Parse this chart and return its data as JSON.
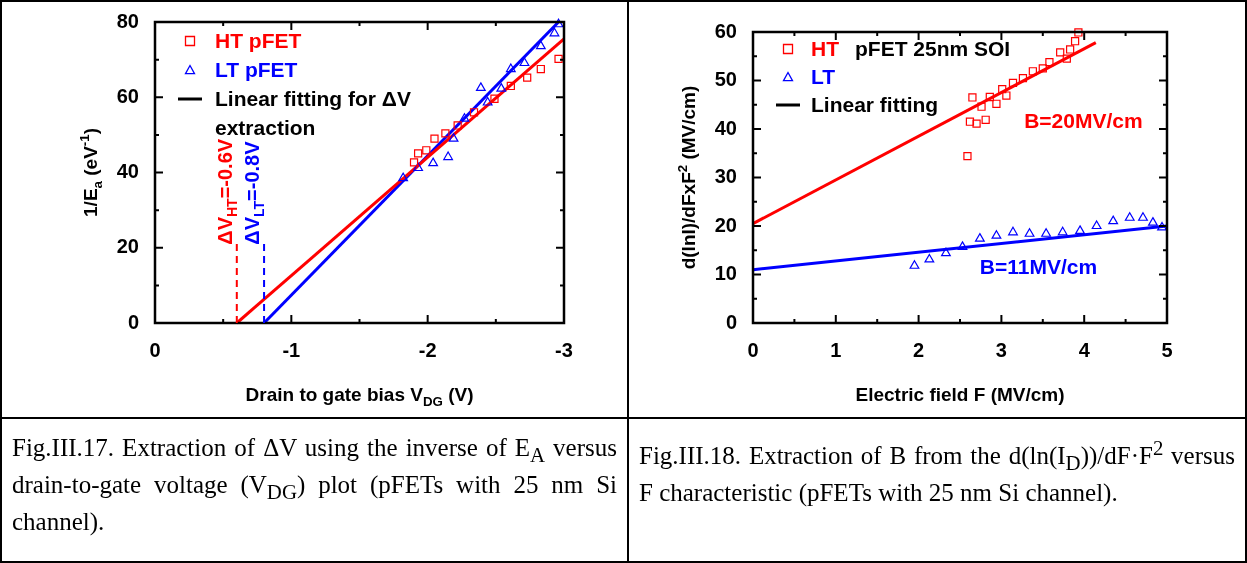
{
  "chart_data": [
    {
      "type": "scatter",
      "xlabel": "Drain to gate bias V$_{DG}$ (V)",
      "ylabel": "1/E$_{a}$ (eV$^{-1}$)",
      "legend": "top left",
      "xlim": [
        0,
        -3
      ],
      "xticks": [
        0,
        {
          "value": -0.5,
          "label": null
        },
        -1,
        {
          "value": -1.5,
          "label": null
        },
        -2,
        {
          "value": -2.5,
          "label": null
        },
        -3
      ],
      "ylim": [
        0,
        80
      ],
      "yticks": [
        0,
        {
          "value": 10,
          "label": null
        },
        20,
        {
          "value": 30,
          "label": null
        },
        40,
        {
          "value": 50,
          "label": null
        },
        60,
        {
          "value": 70,
          "label": null
        },
        80
      ],
      "series": [
        {
          "name": "HT pFET",
          "color": "#ff0000",
          "marker": "square",
          "x": [
            -1.9,
            -1.93,
            -1.99,
            -2.05,
            -2.13,
            -2.22,
            -2.34,
            -2.49,
            -2.61,
            -2.73,
            -2.83,
            -2.96
          ],
          "values": [
            42.7,
            45.1,
            45.9,
            49,
            50.4,
            52.5,
            56,
            59.6,
            63,
            65.2,
            67.5,
            70.2
          ]
        },
        {
          "name": "LT pFET",
          "color": "#0000ff",
          "marker": "triangle",
          "x": [
            -1.82,
            -1.93,
            -2.04,
            -2.15,
            -2.19,
            -2.27,
            -2.39,
            -2.44,
            -2.54,
            -2.61,
            -2.71,
            -2.83,
            -2.93,
            -2.96
          ],
          "values": [
            38.5,
            41.2,
            42.5,
            44.1,
            49,
            54.3,
            62.5,
            58.6,
            62.3,
            67.5,
            69.1,
            73.6,
            77,
            79.4
          ]
        },
        {
          "type": "line",
          "color": "#ff0000",
          "marker": "none",
          "x": [
            -0.6,
            -3
          ],
          "values": [
            0,
            75.5
          ]
        },
        {
          "type": "line",
          "color": "#0000ff",
          "marker": "none",
          "x": [
            -0.8,
            -2.96
          ],
          "values": [
            0,
            80
          ]
        }
      ],
      "ref_lines": [
        {
          "axis": "x",
          "value": -0.6,
          "label": "ΔV$_{HT}$=-0.6V",
          "color": "#ff0000",
          "line_style": "dashed"
        },
        {
          "axis": "x",
          "value": -0.8,
          "label": "ΔV$_{LT}$=-0.8V",
          "color": "#0000ff",
          "line_style": "dashed"
        }
      ],
      "annotations": [
        "Linear fitting for ΔV extraction",
        "Fig.III.17. Extraction of ΔV using the inverse of E$_{A}$ versus drain-to-gate voltage (V$_{DG}$) plot (pFETs with 25 nm Si channel)."
      ]
    },
    {
      "type": "scatter",
      "xlabel": "Electric field F (MV/cm)",
      "ylabel": "d(lnI)/dFxF$^{2}$ (MV/cm)",
      "legend": "top left",
      "legend_title": "pFET 25nm SOI",
      "xlim": [
        0,
        5
      ],
      "xticks": [
        0,
        {
          "value": 0.5,
          "label": null
        },
        1,
        {
          "value": 1.5,
          "label": null
        },
        2,
        {
          "value": 2.5,
          "label": null
        },
        3,
        {
          "value": 3.5,
          "label": null
        },
        4,
        {
          "value": 4.5,
          "label": null
        },
        5
      ],
      "ylim": [
        0,
        60
      ],
      "yticks": [
        0,
        {
          "value": 5,
          "label": null
        },
        10,
        {
          "value": 15,
          "label": null
        },
        20,
        {
          "value": 25,
          "label": null
        },
        30,
        {
          "value": 35,
          "label": null
        },
        40,
        {
          "value": 45,
          "label": null
        },
        50,
        {
          "value": 55,
          "label": null
        },
        60
      ],
      "series": [
        {
          "name": "HT",
          "color": "#ff0000",
          "marker": "square",
          "x": [
            2.59,
            2.62,
            2.65,
            2.7,
            2.76,
            2.81,
            2.86,
            2.94,
            3.01,
            3.06,
            3.14,
            3.26,
            3.38,
            3.5,
            3.58,
            3.71,
            3.79,
            3.83,
            3.89,
            3.93
          ],
          "values": [
            34.4,
            41.5,
            46.5,
            41.1,
            44.6,
            41.9,
            46.6,
            45.2,
            48.2,
            46.9,
            49.5,
            50.5,
            51.9,
            52.5,
            53.8,
            55.8,
            54.5,
            56.4,
            58.1,
            59.9
          ]
        },
        {
          "name": "LT",
          "color": "#0000ff",
          "marker": "triangle",
          "x": [
            1.95,
            2.13,
            2.33,
            2.53,
            2.74,
            2.94,
            3.14,
            3.34,
            3.54,
            3.74,
            3.95,
            4.15,
            4.35,
            4.55,
            4.71,
            4.83,
            4.94
          ],
          "values": [
            11.8,
            13.1,
            14.4,
            15.7,
            17.4,
            18,
            18.7,
            18.4,
            18.4,
            18.7,
            19,
            20,
            21,
            21.7,
            21.7,
            20.7,
            19.7
          ]
        },
        {
          "type": "line",
          "color": "#ff0000",
          "marker": "none",
          "x": [
            0,
            4.14
          ],
          "values": [
            20.5,
            57.8
          ]
        },
        {
          "type": "line",
          "color": "#0000ff",
          "marker": "none",
          "x": [
            0,
            5
          ],
          "values": [
            11,
            20
          ]
        }
      ],
      "annotations": [
        "Linear fitting",
        "B=20MV/cm",
        "B=11MV/cm",
        "Fig.III.18. Extraction of B from the d(ln(I$_{D}$))/dF·F$^{2}$ versus F characteristic (pFETs with 25 nm Si channel)."
      ]
    }
  ]
}
